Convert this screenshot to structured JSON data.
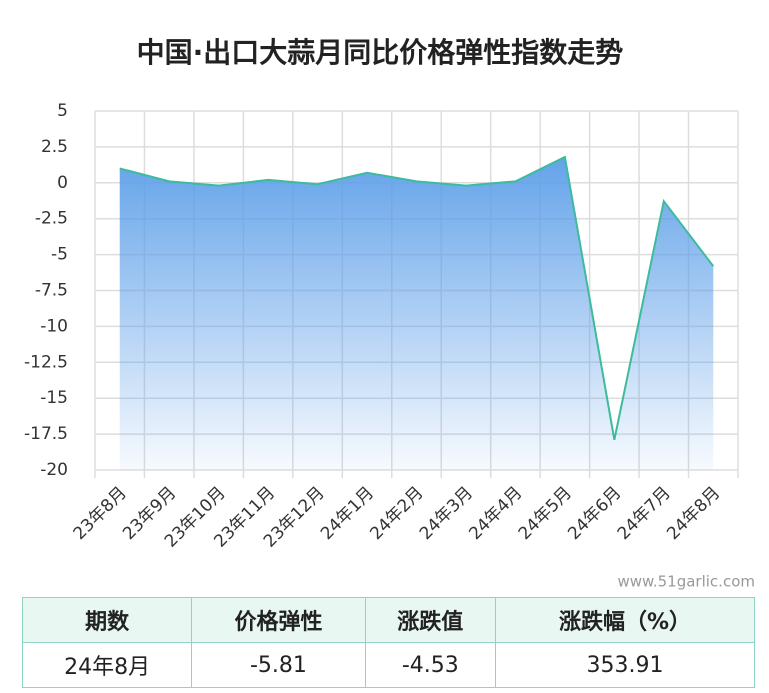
{
  "chart_data": {
    "type": "area_line",
    "title": "中国·出口大蒜月同比价格弹性指数走势",
    "categories": [
      "23年8月",
      "23年9月",
      "23年10月",
      "23年11月",
      "23年12月",
      "24年1月",
      "24年2月",
      "24年3月",
      "24年4月",
      "24年5月",
      "24年6月",
      "24年7月",
      "24年8月"
    ],
    "values": [
      1.0,
      0.1,
      -0.2,
      0.2,
      -0.1,
      0.7,
      0.1,
      -0.2,
      0.1,
      1.8,
      -17.9,
      -1.28,
      -5.81
    ],
    "color": "#3dbb9c",
    "fill_color": "#5b9ee8",
    "ylim": [
      -20,
      5
    ],
    "yticks": [
      5,
      2.5,
      0,
      -2.5,
      -5,
      -7.5,
      -10,
      -12.5,
      -15,
      -17.5,
      -20
    ],
    "grid": true
  },
  "watermark": "www.51garlic.com",
  "table": {
    "columns": [
      "期数",
      "价格弹性",
      "涨跌值",
      "涨跌幅（%）"
    ],
    "rows": [
      [
        "24年8月",
        -5.81,
        -4.53,
        353.91
      ]
    ]
  }
}
